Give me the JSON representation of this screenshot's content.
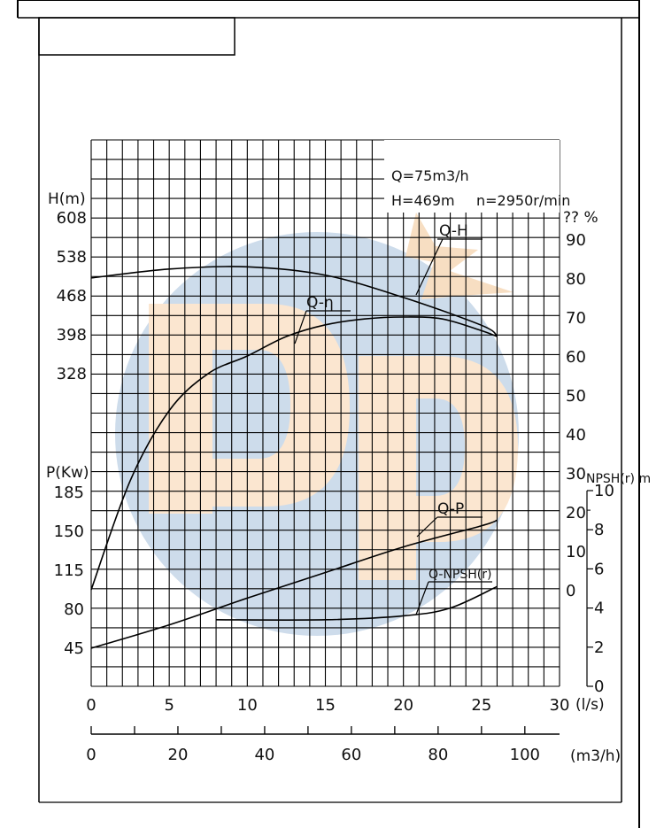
{
  "chart_data": {
    "type": "line",
    "title_box": "",
    "info": {
      "line1": "Q=75m3/h",
      "line2_h": "H=469m",
      "line2_n": "n=2950r/min"
    },
    "x_axis": {
      "label": "(l/s)",
      "range": [
        0,
        30
      ],
      "ticks": [
        "0",
        "5",
        "10",
        "15",
        "20",
        "25",
        "30"
      ]
    },
    "x2_axis": {
      "label": "(m3/h)",
      "range": [
        0,
        108
      ],
      "ticks": [
        "0",
        "20",
        "40",
        "60",
        "80",
        "100"
      ]
    },
    "head_axis": {
      "label": "H(m)",
      "ticks": [
        "608",
        "538",
        "468",
        "398",
        "328"
      ]
    },
    "power_axis": {
      "label": "P(Kw)",
      "ticks": [
        "185",
        "150",
        "115",
        "80",
        "45"
      ]
    },
    "eff_axis": {
      "label": "?? %",
      "range": [
        0,
        90
      ],
      "ticks": [
        "90",
        "80",
        "70",
        "60",
        "50",
        "40",
        "30",
        "20",
        "10",
        "0"
      ]
    },
    "npsh_axis": {
      "label": "NPSH(r)  m",
      "range": [
        0,
        10
      ],
      "ticks": [
        "10",
        "8",
        "6",
        "4",
        "2",
        "0"
      ]
    },
    "series": [
      {
        "name": "Q-H",
        "unit": "m",
        "x": [
          0,
          5,
          10,
          15,
          20,
          25,
          26
        ],
        "y": [
          500,
          516,
          520,
          505,
          465,
          415,
          396
        ]
      },
      {
        "name": "Q-η",
        "unit": "%",
        "x": [
          0,
          2.5,
          5,
          7.5,
          10,
          12.5,
          15,
          17.5,
          20,
          22.5,
          25,
          26
        ],
        "y": [
          0,
          28,
          46,
          55.5,
          60,
          65,
          68,
          69.5,
          70,
          69.5,
          66.5,
          65
        ]
      },
      {
        "name": "Q-P",
        "unit": "Kw",
        "x": [
          0,
          5,
          10,
          15,
          20,
          25,
          26
        ],
        "y": [
          45,
          66,
          90,
          113,
          136,
          155,
          160
        ]
      },
      {
        "name": "Q-NPSH(r)",
        "unit": "m",
        "x": [
          8,
          15,
          20,
          23,
          26
        ],
        "y": [
          3.4,
          3.4,
          3.6,
          4,
          5.1
        ]
      }
    ],
    "series_labels": [
      "Q-H",
      "Q-η",
      "Q-P",
      "Q-NPSH(r)"
    ],
    "grid": true
  }
}
